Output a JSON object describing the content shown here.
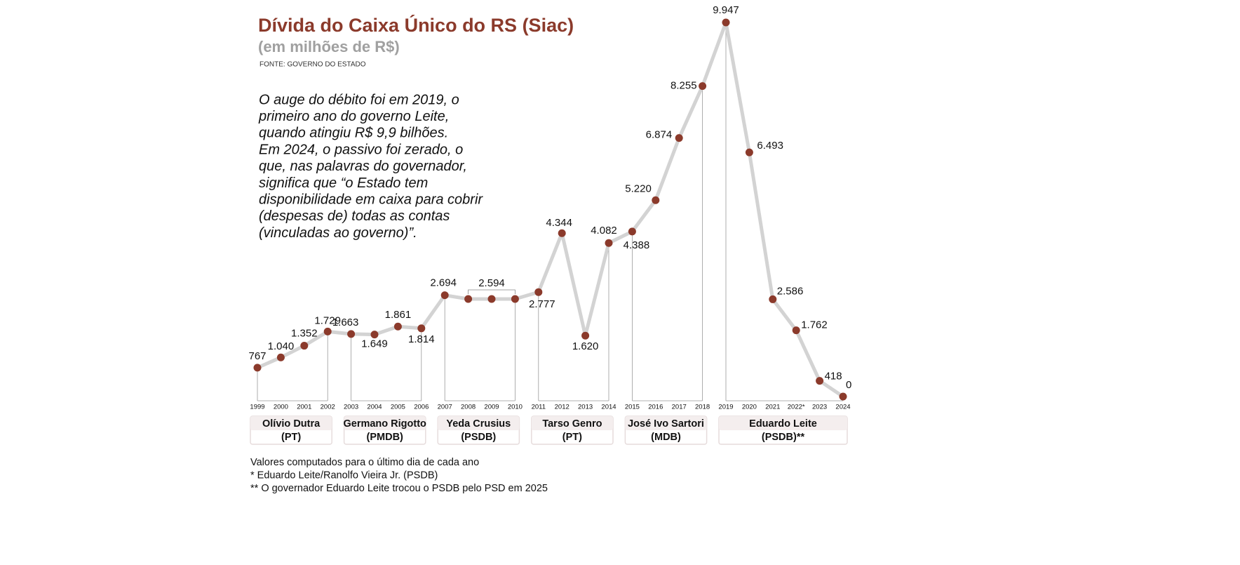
{
  "chart_data": {
    "type": "line",
    "title": "Dívida do Caixa Único do RS (Siac)",
    "subtitle": "(em milhões de R$)",
    "source": "FONTE: GOVERNO DO ESTADO",
    "text": [
      "O auge do débito foi em 2019, o",
      "primeiro ano do governo Leite,",
      "quando atingiu R$ 9,9 bilhões.",
      "Em 2024, o passivo foi zerado, o",
      "que, nas palavras do governador,",
      "significa que “o Estado tem",
      "disponibilidade em caixa para cobrir",
      "(despesas de) todas as contas",
      "(vinculadas ao governo)”."
    ],
    "categories": [
      "1999",
      "2000",
      "2001",
      "2002",
      "2003",
      "2004",
      "2005",
      "2006",
      "2007",
      "2008",
      "2009",
      "2010",
      "2011",
      "2012",
      "2013",
      "2014",
      "2015",
      "2016",
      "2017",
      "2018",
      "2019",
      "2020",
      "2021",
      "2022*",
      "2023",
      "2024"
    ],
    "values": [
      767,
      1040,
      1352,
      1729,
      1663,
      1649,
      1861,
      1814,
      2694,
      2594,
      2594,
      2594,
      2777,
      4344,
      1620,
      4082,
      4388,
      5220,
      6874,
      8255,
      9947,
      6493,
      2586,
      1762,
      418,
      0
    ],
    "value_labels": [
      "767",
      "1.040",
      "1.352",
      "1.729",
      "1.663",
      "1.649",
      "1.861",
      "1.814",
      "2.694",
      null,
      "2.594",
      null,
      "2.777",
      "4.344",
      "1.620",
      "4.082",
      "4.388",
      "5.220",
      "6.874",
      "8.255",
      "9.947",
      "6.493",
      "2.586",
      "1.762",
      "418",
      "0"
    ],
    "line_color": "#d3d3d3",
    "marker_color": "#8b3a2b",
    "governments": [
      {
        "name": "Olívio Dutra",
        "party": "(PT)"
      },
      {
        "name": "Germano Rigotto",
        "party": "(PMDB)"
      },
      {
        "name": "Yeda Crusius",
        "party": "(PSDB)"
      },
      {
        "name": "Tarso Genro",
        "party": "(PT)"
      },
      {
        "name": "José Ivo Sartori",
        "party": "(MDB)"
      },
      {
        "name": "Eduardo Leite",
        "party": "(PSDB)**"
      }
    ],
    "notes": [
      "Valores computados para o último dia de cada ano",
      "* Eduardo Leite/Ranolfo Vieira Jr. (PSDB)",
      "** O governador Eduardo Leite trocou o PSDB pelo PSD em 2025"
    ]
  }
}
